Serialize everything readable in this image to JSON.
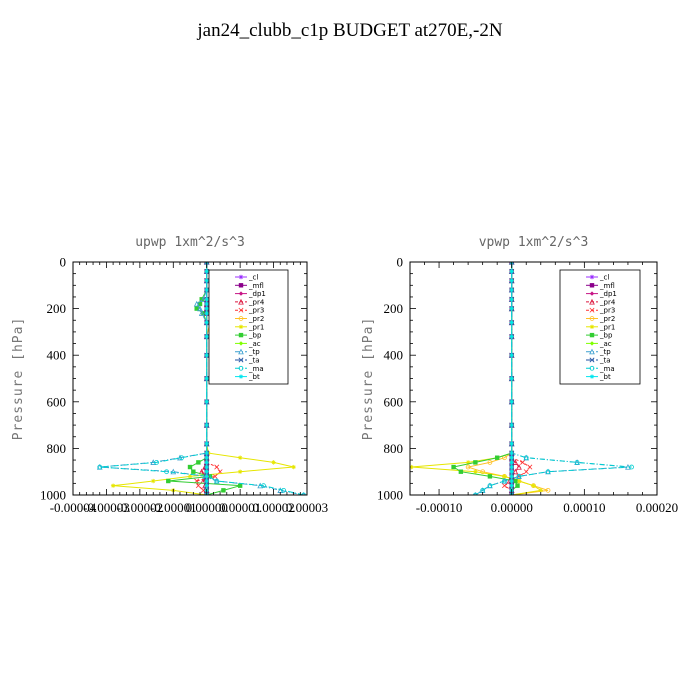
{
  "page": {
    "title": "jan24_clubb_c1p  BUDGET at270E,-2N"
  },
  "series_styles": [
    {
      "name": "_cl",
      "color": "#9b30ff",
      "dash": ""
    },
    {
      "name": "_mfl",
      "color": "#8b008b",
      "dash": ""
    },
    {
      "name": "_dp1",
      "color": "#c71585",
      "dash": ""
    },
    {
      "name": "_pr4",
      "color": "#dc143c",
      "dash": "3,2"
    },
    {
      "name": "_pr3",
      "color": "#ff3030",
      "dash": "3,2"
    },
    {
      "name": "_pr2",
      "color": "#ffc125",
      "dash": ""
    },
    {
      "name": "_pr1",
      "color": "#e6e600",
      "dash": ""
    },
    {
      "name": "_bp",
      "color": "#32cd32",
      "dash": ""
    },
    {
      "name": "_ac",
      "color": "#7fff00",
      "dash": ""
    },
    {
      "name": "_tp",
      "color": "#3a9fcf",
      "dash": "5,2,1,2"
    },
    {
      "name": "_ta",
      "color": "#1e4fa0",
      "dash": "5,2,1,2"
    },
    {
      "name": "_ma",
      "color": "#00ced1",
      "dash": "5,2,1,2"
    },
    {
      "name": "_bt",
      "color": "#00e5ee",
      "dash": ""
    }
  ],
  "chart_data": [
    {
      "type": "line",
      "title": "upwp   1xm^2/s^3",
      "ylabel": "Pressure [hPa]",
      "ylim": [
        1000,
        0
      ],
      "xlim": [
        -4e-05,
        3e-05
      ],
      "yticks": [
        0,
        200,
        400,
        600,
        800,
        1000
      ],
      "xticks": [
        -4e-05,
        -3e-05,
        -2e-05,
        -1e-05,
        0.0,
        1e-05,
        2e-05,
        3e-05
      ],
      "xtick_labels": [
        "-0.00004",
        "-0.00003",
        "-0.00002",
        "-0.00001",
        "0.00000",
        "0.00001",
        "0.00002",
        "0.00003"
      ],
      "legend": [
        "_cl",
        "_mfl",
        "_dp1",
        "_pr4",
        "_pr3",
        "_pr2",
        "_pr1",
        "_bp",
        "_ac",
        "_tp",
        "_ta",
        "_ma",
        "_bt"
      ],
      "legend_position": "top-right",
      "y": [
        0,
        40,
        80,
        120,
        160,
        180,
        200,
        220,
        260,
        320,
        400,
        500,
        600,
        700,
        780,
        820,
        840,
        860,
        880,
        900,
        920,
        940,
        960,
        980,
        1000
      ],
      "series": [
        {
          "name": "_cl",
          "values": [
            0,
            0,
            0,
            0,
            0,
            0,
            0,
            0,
            0,
            0,
            0,
            0,
            0,
            0,
            0,
            0,
            0,
            0,
            0,
            0,
            0,
            0,
            0,
            0,
            0
          ]
        },
        {
          "name": "_mfl",
          "values": [
            0,
            0,
            0,
            0,
            0,
            0,
            0,
            0,
            0,
            0,
            0,
            0,
            0,
            0,
            0,
            0,
            0,
            0,
            0,
            0,
            0,
            0,
            0,
            0,
            0
          ]
        },
        {
          "name": "_dp1",
          "values": [
            0,
            0,
            0,
            0,
            0,
            0,
            0,
            0,
            0,
            0,
            0,
            0,
            0,
            0,
            0,
            0,
            0,
            0,
            0,
            0,
            0,
            0,
            0,
            0,
            0
          ]
        },
        {
          "name": "_pr4",
          "values": [
            0,
            0,
            0,
            0,
            0,
            0,
            0,
            0,
            0,
            0,
            0,
            0,
            0,
            0,
            0,
            0,
            0,
            0,
            -5e-07,
            -1.5e-06,
            -5e-07,
            -1e-06,
            -5e-07,
            0,
            0
          ]
        },
        {
          "name": "_pr3",
          "values": [
            0,
            0,
            0,
            0,
            0,
            0,
            0,
            0,
            0,
            0,
            0,
            0,
            0,
            0,
            0,
            0,
            0,
            0,
            3e-06,
            4e-06,
            2.5e-06,
            -3e-06,
            -2.5e-06,
            -1e-06,
            0
          ]
        },
        {
          "name": "_pr2",
          "values": [
            0,
            0,
            0,
            0,
            2.5e-06,
            3.5e-06,
            4e-06,
            3e-06,
            1e-06,
            0,
            0,
            0,
            0,
            0,
            0,
            0,
            0,
            0,
            0,
            0,
            0,
            0,
            0,
            0,
            0
          ]
        },
        {
          "name": "_pr1",
          "values": [
            0,
            0,
            0,
            0,
            0,
            0,
            0,
            0,
            0,
            0,
            0,
            0,
            0,
            0,
            0,
            5e-07,
            1e-05,
            2e-05,
            2.6e-05,
            1e-05,
            -5e-06,
            -1.6e-05,
            -2.8e-05,
            -1e-05,
            0
          ]
        },
        {
          "name": "_bp",
          "values": [
            0,
            0,
            0,
            0,
            -1.5e-06,
            -2e-06,
            -3e-06,
            -1e-06,
            0,
            0,
            0,
            0,
            0,
            0,
            0,
            0,
            0,
            -2.5e-06,
            -5e-06,
            -4e-06,
            1e-06,
            -1.15e-05,
            1e-05,
            5e-06,
            0
          ]
        },
        {
          "name": "_ac",
          "values": [
            0,
            0,
            0,
            0,
            0,
            0,
            0,
            0,
            0,
            0,
            0,
            0,
            0,
            0,
            0,
            0,
            0,
            0,
            0,
            0,
            0,
            0,
            0,
            0,
            0
          ]
        },
        {
          "name": "_tp",
          "values": [
            0,
            0,
            0,
            0,
            -1e-06,
            -3e-06,
            -2e-06,
            -1.5e-06,
            0,
            0,
            0,
            0,
            0,
            0,
            0,
            0,
            -8e-06,
            -1.6e-05,
            -3.2e-05,
            -1e-05,
            -5e-07,
            3e-06,
            1.6e-05,
            2.2e-05,
            2.9e-05
          ]
        },
        {
          "name": "_ta",
          "values": [
            0,
            0,
            0,
            0,
            0,
            0,
            0,
            0,
            0,
            0,
            0,
            0,
            0,
            0,
            0,
            0,
            0,
            0,
            0,
            0,
            0,
            0,
            0,
            0,
            0
          ]
        },
        {
          "name": "_ma",
          "values": [
            0,
            0,
            0,
            0,
            0,
            0,
            0,
            0,
            0,
            0,
            0,
            0,
            0,
            0,
            0,
            0,
            -7.5e-06,
            -1.5e-05,
            -3.2e-05,
            -1.2e-05,
            5e-07,
            3e-06,
            1.7e-05,
            2.3e-05,
            2.9e-05
          ]
        },
        {
          "name": "_bt",
          "values": [
            0,
            0,
            0,
            0,
            0,
            0,
            0,
            0,
            0,
            0,
            0,
            0,
            0,
            0,
            0,
            0,
            0,
            0,
            0,
            0,
            0,
            0,
            0,
            0,
            0
          ]
        }
      ]
    },
    {
      "type": "line",
      "title": "vpwp   1xm^2/s^3",
      "ylabel": "Pressure [hPa]",
      "ylim": [
        1000,
        0
      ],
      "xlim": [
        -0.00014,
        0.0002
      ],
      "yticks": [
        0,
        200,
        400,
        600,
        800,
        1000
      ],
      "xticks": [
        -0.0001,
        0.0,
        0.0001,
        0.0002
      ],
      "xtick_labels": [
        "-0.00010",
        "0.00000",
        "0.00010",
        "0.00020"
      ],
      "legend": [
        "_cl",
        "_mfl",
        "_dp1",
        "_pr4",
        "_pr3",
        "_pr2",
        "_pr1",
        "_bp",
        "_ac",
        "_tp",
        "_ta",
        "_ma",
        "_bt"
      ],
      "legend_position": "top-right",
      "y": [
        0,
        40,
        80,
        120,
        160,
        200,
        260,
        320,
        400,
        500,
        600,
        700,
        780,
        820,
        840,
        860,
        880,
        900,
        920,
        940,
        960,
        980,
        1000
      ],
      "series": [
        {
          "name": "_cl",
          "values": [
            0,
            0,
            0,
            0,
            0,
            0,
            0,
            0,
            0,
            0,
            0,
            0,
            0,
            0,
            0,
            0,
            0,
            0,
            0,
            0,
            0,
            0,
            0
          ]
        },
        {
          "name": "_mfl",
          "values": [
            0,
            0,
            0,
            0,
            0,
            0,
            0,
            0,
            0,
            0,
            0,
            0,
            0,
            0,
            0,
            0,
            0,
            0,
            0,
            0,
            0,
            0,
            0
          ]
        },
        {
          "name": "_dp1",
          "values": [
            0,
            0,
            0,
            0,
            0,
            0,
            0,
            0,
            0,
            0,
            0,
            0,
            0,
            0,
            0,
            0,
            0,
            0,
            0,
            0,
            0,
            0,
            0
          ]
        },
        {
          "name": "_pr4",
          "values": [
            0,
            0,
            0,
            0,
            0,
            0,
            0,
            0,
            0,
            0,
            0,
            0,
            0,
            0,
            0,
            5e-06,
            1e-05,
            5e-06,
            0,
            -3e-06,
            0,
            0,
            0
          ]
        },
        {
          "name": "_pr3",
          "values": [
            0,
            0,
            0,
            0,
            0,
            0,
            0,
            0,
            0,
            0,
            0,
            0,
            0,
            0,
            0,
            1.5e-05,
            2.5e-05,
            2e-05,
            1e-05,
            0,
            -1e-05,
            0,
            0
          ]
        },
        {
          "name": "_pr2",
          "values": [
            0,
            0,
            0,
            0,
            0,
            0,
            0,
            0,
            0,
            0,
            0,
            0,
            0,
            0,
            -1e-05,
            -3e-05,
            -6e-05,
            -4e-05,
            -1e-05,
            1e-05,
            3e-05,
            5e-05,
            0
          ]
        },
        {
          "name": "_pr1",
          "values": [
            0,
            0,
            0,
            0,
            0,
            0,
            0,
            0,
            0,
            0,
            0,
            0,
            0,
            0,
            -2e-05,
            -6e-05,
            -0.000138,
            -5e-05,
            -1e-05,
            1e-05,
            3e-05,
            4e-05,
            0
          ]
        },
        {
          "name": "_bp",
          "values": [
            0,
            0,
            0,
            0,
            0,
            0,
            0,
            0,
            0,
            0,
            0,
            0,
            0,
            0,
            -2e-05,
            -5e-05,
            -8e-05,
            -7e-05,
            -3e-05,
            5e-06,
            8e-06,
            0,
            0
          ]
        },
        {
          "name": "_ac",
          "values": [
            0,
            0,
            0,
            0,
            0,
            0,
            0,
            0,
            0,
            0,
            0,
            0,
            0,
            0,
            0,
            0,
            0,
            0,
            0,
            0,
            0,
            0,
            0
          ]
        },
        {
          "name": "_tp",
          "values": [
            0,
            0,
            0,
            0,
            0,
            0,
            0,
            0,
            0,
            0,
            0,
            0,
            0,
            0,
            2e-05,
            9e-05,
            0.00016,
            5e-05,
            1e-05,
            -1e-05,
            -3e-05,
            -4e-05,
            -5e-05
          ]
        },
        {
          "name": "_ta",
          "values": [
            0,
            0,
            0,
            0,
            0,
            0,
            0,
            0,
            0,
            0,
            0,
            0,
            0,
            0,
            0,
            0,
            0,
            0,
            0,
            0,
            0,
            0,
            0
          ]
        },
        {
          "name": "_ma",
          "values": [
            0,
            0,
            0,
            0,
            0,
            0,
            0,
            0,
            0,
            0,
            0,
            0,
            0,
            0,
            2e-05,
            9e-05,
            0.000165,
            5e-05,
            1e-05,
            -1e-05,
            -3e-05,
            -4e-05,
            -5e-05
          ]
        },
        {
          "name": "_bt",
          "values": [
            0,
            0,
            0,
            0,
            0,
            0,
            0,
            0,
            0,
            0,
            0,
            0,
            0,
            0,
            0,
            0,
            0,
            0,
            0,
            0,
            0,
            0,
            0
          ]
        }
      ]
    }
  ]
}
